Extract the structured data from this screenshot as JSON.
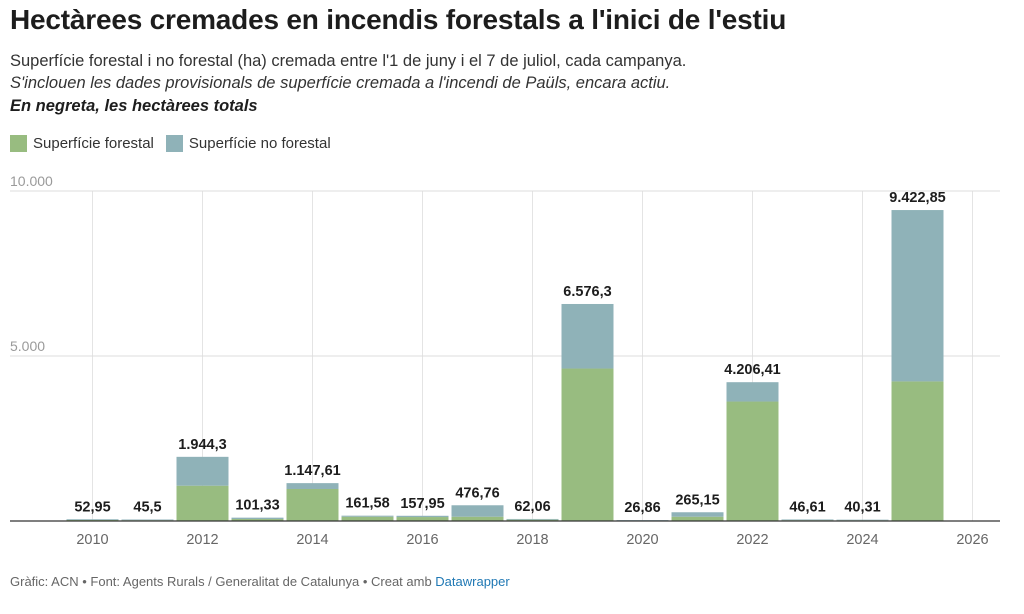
{
  "header": {
    "title": "Hectàrees cremades en incendis forestals a l'inici de l'estiu",
    "subtitle": "Superfície forestal i no forestal (ha) cremada entre l'1 de juny i el 7 de juliol, cada campanya.",
    "note": "S'inclouen les dades provisionals de superfície cremada a l'incendi de Paüls, encara actiu.",
    "note_bold": "En negreta, les hectàrees totals"
  },
  "legend": [
    {
      "label": "Superfície forestal",
      "color": "#98bc80"
    },
    {
      "label": "Superfície no forestal",
      "color": "#8fb2b8"
    }
  ],
  "footer": {
    "text": "Gràfic: ACN • Font: Agents Rurals / Generalitat de Catalunya • Creat amb ",
    "link": "Datawrapper"
  },
  "chart_data": {
    "type": "bar",
    "stacked": true,
    "x": [
      2010,
      2011,
      2012,
      2013,
      2014,
      2015,
      2016,
      2017,
      2018,
      2019,
      2020,
      2021,
      2022,
      2023,
      2024,
      2025
    ],
    "series": [
      {
        "name": "Superfície forestal",
        "color": "#98bc80",
        "values": [
          30,
          25,
          1070,
          60,
          970,
          130,
          120,
          130,
          40,
          4620,
          15,
          130,
          3620,
          25,
          22,
          4230
        ]
      },
      {
        "name": "Superfície no forestal",
        "color": "#8fb2b8",
        "values": [
          22.95,
          20.5,
          874.3,
          41.33,
          177.61,
          31.58,
          37.95,
          346.76,
          22.06,
          1956.3,
          11.86,
          135.15,
          586.41,
          21.61,
          18.31,
          5192.85
        ]
      }
    ],
    "totals": [
      "52,95",
      "45,5",
      "1.944,3",
      "101,33",
      "1.147,61",
      "161,58",
      "157,95",
      "476,76",
      "62,06",
      "6.576,3",
      "26,86",
      "265,15",
      "4.206,41",
      "46,61",
      "40,31",
      "9.422,85"
    ],
    "x_ticks": [
      "2010",
      "2012",
      "2014",
      "2016",
      "2018",
      "2020",
      "2022",
      "2024",
      "2026"
    ],
    "x_tick_values": [
      2010,
      2012,
      2014,
      2016,
      2018,
      2020,
      2022,
      2024,
      2026
    ],
    "y_ticks": [
      "5.000",
      "10.000"
    ],
    "y_tick_values": [
      5000,
      10000
    ],
    "xlim": [
      2009.5,
      2026.5
    ],
    "ylim": [
      0,
      10000
    ],
    "grid": true,
    "legend_position": "top-left"
  }
}
